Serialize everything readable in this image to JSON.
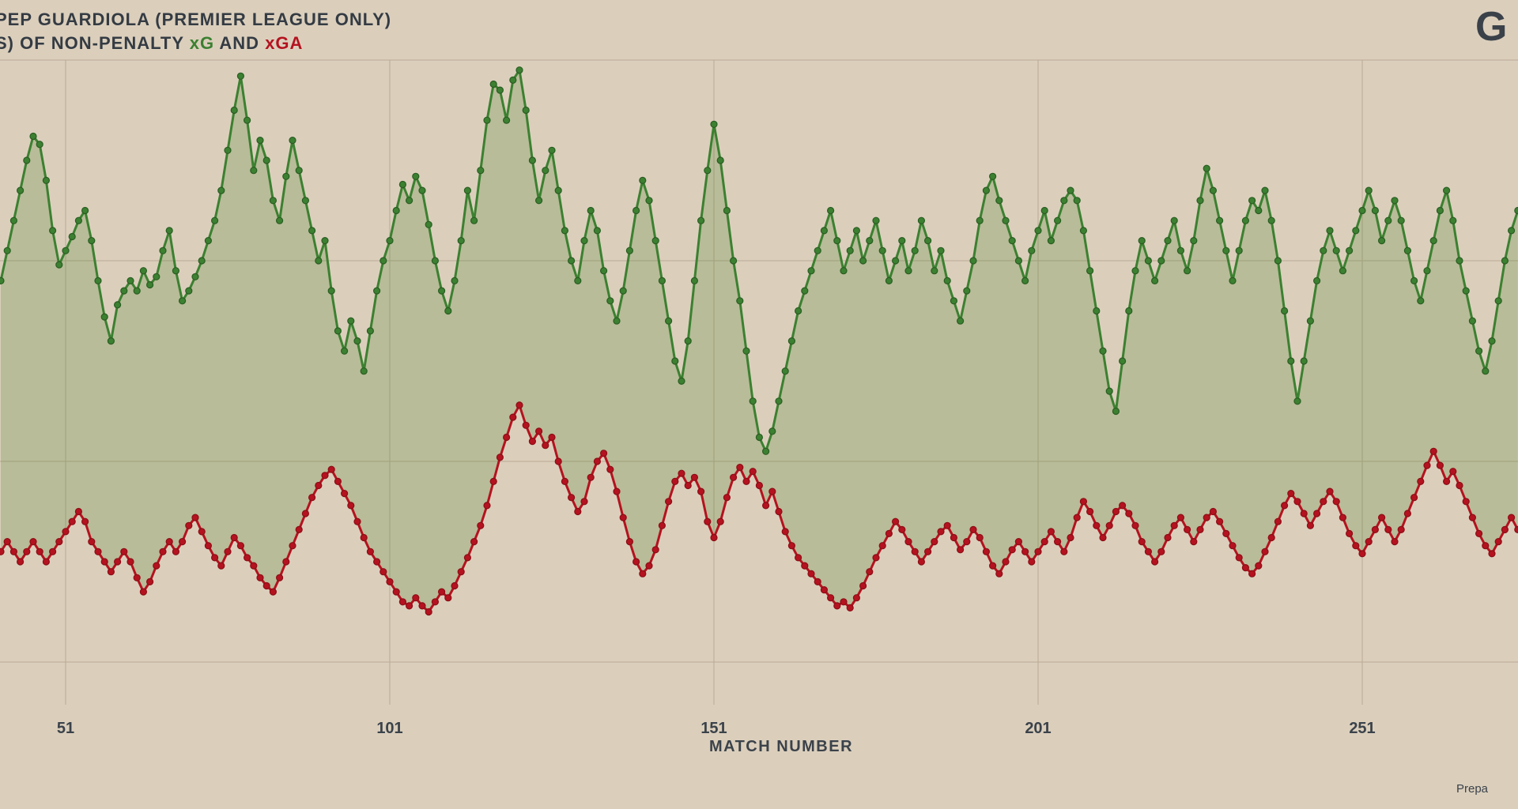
{
  "page": {
    "background_color": "#dbcfbc",
    "text_color": "#3b424a"
  },
  "header": {
    "title_line1": "PEP GUARDIOLA (PREMIER LEAGUE ONLY)",
    "title_line2_prefix": "S) OF NON-PENALTY ",
    "title_xg": "xG",
    "title_and": " AND ",
    "title_xga": "xGA",
    "logo_text": "G"
  },
  "footer": {
    "credit": "Prepa"
  },
  "chart_data": {
    "type": "line",
    "title": "PEP GUARDIOLA (PREMIER LEAGUE ONLY) S) OF NON-PENALTY xG AND xGA",
    "xlabel": "MATCH NUMBER",
    "ylabel": "",
    "x_ticks": [
      51,
      101,
      151,
      201,
      251
    ],
    "x_start": 41,
    "x_end": 275,
    "ylim": [
      0,
      3.3
    ],
    "y_gridlines": [
      0,
      1,
      2,
      3
    ],
    "grid": true,
    "legend_position": "none",
    "fill_between": {
      "color": "rgba(92,140,60,0.28)"
    },
    "series": [
      {
        "name": "xG",
        "color": "#3c8031",
        "edge_color": "#2a5d22",
        "values": [
          1.9,
          2.05,
          2.2,
          2.35,
          2.5,
          2.62,
          2.58,
          2.4,
          2.15,
          1.98,
          2.05,
          2.12,
          2.2,
          2.25,
          2.1,
          1.9,
          1.72,
          1.6,
          1.78,
          1.85,
          1.9,
          1.85,
          1.95,
          1.88,
          1.92,
          2.05,
          2.15,
          1.95,
          1.8,
          1.85,
          1.92,
          2.0,
          2.1,
          2.2,
          2.35,
          2.55,
          2.75,
          2.92,
          2.7,
          2.45,
          2.6,
          2.5,
          2.3,
          2.2,
          2.42,
          2.6,
          2.45,
          2.3,
          2.15,
          2.0,
          2.1,
          1.85,
          1.65,
          1.55,
          1.7,
          1.6,
          1.45,
          1.65,
          1.85,
          2.0,
          2.1,
          2.25,
          2.38,
          2.3,
          2.42,
          2.35,
          2.18,
          2.0,
          1.85,
          1.75,
          1.9,
          2.1,
          2.35,
          2.2,
          2.45,
          2.7,
          2.88,
          2.85,
          2.7,
          2.9,
          2.95,
          2.75,
          2.5,
          2.3,
          2.45,
          2.55,
          2.35,
          2.15,
          2.0,
          1.9,
          2.1,
          2.25,
          2.15,
          1.95,
          1.8,
          1.7,
          1.85,
          2.05,
          2.25,
          2.4,
          2.3,
          2.1,
          1.9,
          1.7,
          1.5,
          1.4,
          1.6,
          1.9,
          2.2,
          2.45,
          2.68,
          2.5,
          2.25,
          2.0,
          1.8,
          1.55,
          1.3,
          1.12,
          1.05,
          1.15,
          1.3,
          1.45,
          1.6,
          1.75,
          1.85,
          1.95,
          2.05,
          2.15,
          2.25,
          2.1,
          1.95,
          2.05,
          2.15,
          2.0,
          2.1,
          2.2,
          2.05,
          1.9,
          2.0,
          2.1,
          1.95,
          2.05,
          2.2,
          2.1,
          1.95,
          2.05,
          1.9,
          1.8,
          1.7,
          1.85,
          2.0,
          2.2,
          2.35,
          2.42,
          2.3,
          2.2,
          2.1,
          2.0,
          1.9,
          2.05,
          2.15,
          2.25,
          2.1,
          2.2,
          2.3,
          2.35,
          2.3,
          2.15,
          1.95,
          1.75,
          1.55,
          1.35,
          1.25,
          1.5,
          1.75,
          1.95,
          2.1,
          2.0,
          1.9,
          2.0,
          2.1,
          2.2,
          2.05,
          1.95,
          2.1,
          2.3,
          2.46,
          2.35,
          2.2,
          2.05,
          1.9,
          2.05,
          2.2,
          2.3,
          2.25,
          2.35,
          2.2,
          2.0,
          1.75,
          1.5,
          1.3,
          1.5,
          1.7,
          1.9,
          2.05,
          2.15,
          2.05,
          1.95,
          2.05,
          2.15,
          2.25,
          2.35,
          2.25,
          2.1,
          2.2,
          2.3,
          2.2,
          2.05,
          1.9,
          1.8,
          1.95,
          2.1,
          2.25,
          2.35,
          2.2,
          2.0,
          1.85,
          1.7,
          1.55,
          1.45,
          1.6,
          1.8,
          2.0,
          2.15,
          2.25
        ]
      },
      {
        "name": "xGA",
        "color": "#b5121f",
        "edge_color": "#8c0e16",
        "values": [
          0.55,
          0.6,
          0.55,
          0.5,
          0.55,
          0.6,
          0.55,
          0.5,
          0.55,
          0.6,
          0.65,
          0.7,
          0.75,
          0.7,
          0.6,
          0.55,
          0.5,
          0.45,
          0.5,
          0.55,
          0.5,
          0.42,
          0.35,
          0.4,
          0.48,
          0.55,
          0.6,
          0.55,
          0.6,
          0.68,
          0.72,
          0.65,
          0.58,
          0.52,
          0.48,
          0.55,
          0.62,
          0.58,
          0.52,
          0.48,
          0.42,
          0.38,
          0.35,
          0.42,
          0.5,
          0.58,
          0.66,
          0.74,
          0.82,
          0.88,
          0.93,
          0.96,
          0.9,
          0.84,
          0.78,
          0.7,
          0.62,
          0.55,
          0.5,
          0.45,
          0.4,
          0.35,
          0.3,
          0.28,
          0.32,
          0.28,
          0.25,
          0.3,
          0.35,
          0.32,
          0.38,
          0.45,
          0.52,
          0.6,
          0.68,
          0.78,
          0.9,
          1.02,
          1.12,
          1.22,
          1.28,
          1.18,
          1.1,
          1.15,
          1.08,
          1.12,
          1.0,
          0.9,
          0.82,
          0.75,
          0.8,
          0.92,
          1.0,
          1.04,
          0.96,
          0.85,
          0.72,
          0.6,
          0.5,
          0.44,
          0.48,
          0.56,
          0.68,
          0.8,
          0.9,
          0.94,
          0.88,
          0.92,
          0.85,
          0.7,
          0.62,
          0.7,
          0.82,
          0.92,
          0.97,
          0.9,
          0.95,
          0.88,
          0.78,
          0.85,
          0.75,
          0.65,
          0.58,
          0.52,
          0.48,
          0.44,
          0.4,
          0.36,
          0.32,
          0.28,
          0.3,
          0.27,
          0.32,
          0.38,
          0.45,
          0.52,
          0.58,
          0.64,
          0.7,
          0.66,
          0.6,
          0.55,
          0.5,
          0.55,
          0.6,
          0.65,
          0.68,
          0.62,
          0.56,
          0.6,
          0.66,
          0.62,
          0.55,
          0.48,
          0.44,
          0.5,
          0.56,
          0.6,
          0.55,
          0.5,
          0.55,
          0.6,
          0.65,
          0.6,
          0.55,
          0.62,
          0.72,
          0.8,
          0.75,
          0.68,
          0.62,
          0.68,
          0.75,
          0.78,
          0.74,
          0.68,
          0.6,
          0.55,
          0.5,
          0.55,
          0.62,
          0.68,
          0.72,
          0.66,
          0.6,
          0.66,
          0.72,
          0.75,
          0.7,
          0.64,
          0.58,
          0.52,
          0.47,
          0.44,
          0.48,
          0.55,
          0.62,
          0.7,
          0.78,
          0.84,
          0.8,
          0.74,
          0.68,
          0.74,
          0.8,
          0.85,
          0.8,
          0.72,
          0.64,
          0.58,
          0.54,
          0.6,
          0.66,
          0.72,
          0.66,
          0.6,
          0.66,
          0.74,
          0.82,
          0.9,
          0.98,
          1.05,
          0.98,
          0.9,
          0.95,
          0.88,
          0.8,
          0.72,
          0.64,
          0.58,
          0.54,
          0.6,
          0.66,
          0.72,
          0.66
        ]
      }
    ]
  }
}
